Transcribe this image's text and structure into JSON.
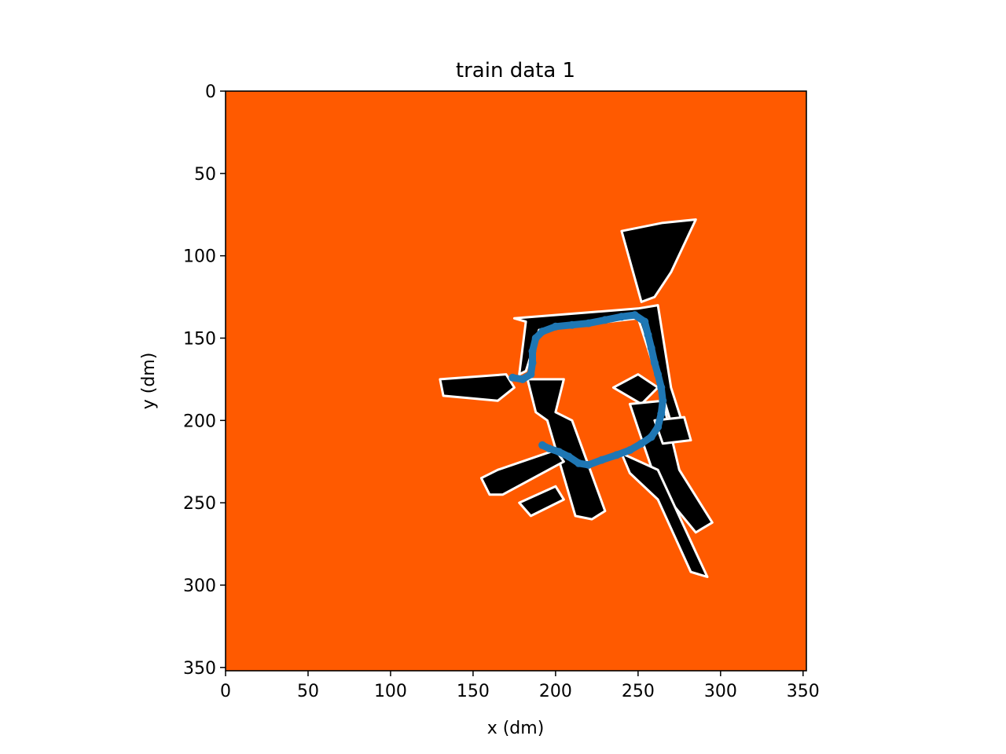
{
  "chart_data": {
    "type": "heatmap",
    "title": "train data 1",
    "xlabel": "x (dm)",
    "ylabel": "y (dm)",
    "xlim": [
      0,
      352
    ],
    "ylim": [
      352,
      0
    ],
    "y_inverted": true,
    "grid": false,
    "xticks": [
      {
        "value": 0,
        "label": "0"
      },
      {
        "value": 50,
        "label": "50"
      },
      {
        "value": 100,
        "label": "100"
      },
      {
        "value": 150,
        "label": "150"
      },
      {
        "value": 200,
        "label": "200"
      },
      {
        "value": 250,
        "label": "250"
      },
      {
        "value": 300,
        "label": "300"
      },
      {
        "value": 350,
        "label": "350"
      }
    ],
    "yticks": [
      {
        "value": 0,
        "label": "0"
      },
      {
        "value": 50,
        "label": "50"
      },
      {
        "value": 100,
        "label": "100"
      },
      {
        "value": 150,
        "label": "150"
      },
      {
        "value": 200,
        "label": "200"
      },
      {
        "value": 250,
        "label": "250"
      },
      {
        "value": 300,
        "label": "300"
      },
      {
        "value": 350,
        "label": "350"
      }
    ],
    "colors": {
      "unknown_background": "#ff5a00",
      "free_space": "#000000",
      "obstacle_edge": "#ffffff",
      "ray_noise": "#cc1500",
      "trajectory": "#1f77b4",
      "frame": "#000000"
    },
    "map_regions": [
      [
        [
          175,
          138
        ],
        [
          250,
          132
        ],
        [
          262,
          130
        ],
        [
          270,
          180
        ],
        [
          278,
          205
        ],
        [
          272,
          208
        ],
        [
          262,
          175
        ],
        [
          250,
          138
        ],
        [
          190,
          145
        ],
        [
          182,
          170
        ],
        [
          178,
          172
        ],
        [
          182,
          140
        ]
      ],
      [
        [
          183,
          175
        ],
        [
          205,
          175
        ],
        [
          200,
          195
        ],
        [
          210,
          200
        ],
        [
          230,
          255
        ],
        [
          222,
          260
        ],
        [
          212,
          258
        ],
        [
          195,
          200
        ],
        [
          188,
          195
        ]
      ],
      [
        [
          155,
          235
        ],
        [
          165,
          230
        ],
        [
          200,
          218
        ],
        [
          205,
          225
        ],
        [
          168,
          245
        ],
        [
          160,
          245
        ]
      ],
      [
        [
          178,
          250
        ],
        [
          200,
          240
        ],
        [
          205,
          248
        ],
        [
          185,
          258
        ]
      ],
      [
        [
          235,
          180
        ],
        [
          250,
          172
        ],
        [
          262,
          180
        ],
        [
          252,
          190
        ]
      ],
      [
        [
          245,
          190
        ],
        [
          265,
          188
        ],
        [
          275,
          230
        ],
        [
          295,
          262
        ],
        [
          285,
          268
        ],
        [
          262,
          240
        ],
        [
          250,
          205
        ]
      ],
      [
        [
          240,
          220
        ],
        [
          262,
          230
        ],
        [
          285,
          280
        ],
        [
          292,
          295
        ],
        [
          282,
          292
        ],
        [
          262,
          248
        ],
        [
          245,
          232
        ]
      ],
      [
        [
          240,
          85
        ],
        [
          265,
          80
        ],
        [
          285,
          78
        ],
        [
          270,
          110
        ],
        [
          260,
          125
        ],
        [
          252,
          128
        ]
      ],
      [
        [
          130,
          175
        ],
        [
          170,
          172
        ],
        [
          175,
          180
        ],
        [
          165,
          188
        ],
        [
          132,
          185
        ]
      ],
      [
        [
          260,
          200
        ],
        [
          278,
          198
        ],
        [
          282,
          212
        ],
        [
          265,
          214
        ]
      ]
    ],
    "trajectory": [
      [
        174,
        174
      ],
      [
        180,
        175
      ],
      [
        185,
        172
      ],
      [
        186,
        165
      ],
      [
        186,
        158
      ],
      [
        188,
        150
      ],
      [
        192,
        146
      ],
      [
        200,
        143
      ],
      [
        210,
        142
      ],
      [
        220,
        141
      ],
      [
        230,
        139
      ],
      [
        240,
        137
      ],
      [
        248,
        136
      ],
      [
        254,
        140
      ],
      [
        256,
        148
      ],
      [
        258,
        156
      ],
      [
        260,
        165
      ],
      [
        262,
        172
      ],
      [
        264,
        180
      ],
      [
        265,
        188
      ],
      [
        264,
        196
      ],
      [
        262,
        204
      ],
      [
        258,
        210
      ],
      [
        252,
        214
      ],
      [
        245,
        218
      ],
      [
        237,
        221
      ],
      [
        228,
        224
      ],
      [
        220,
        227
      ],
      [
        214,
        226
      ],
      [
        208,
        222
      ],
      [
        202,
        219
      ],
      [
        196,
        217
      ],
      [
        192,
        215
      ]
    ]
  }
}
